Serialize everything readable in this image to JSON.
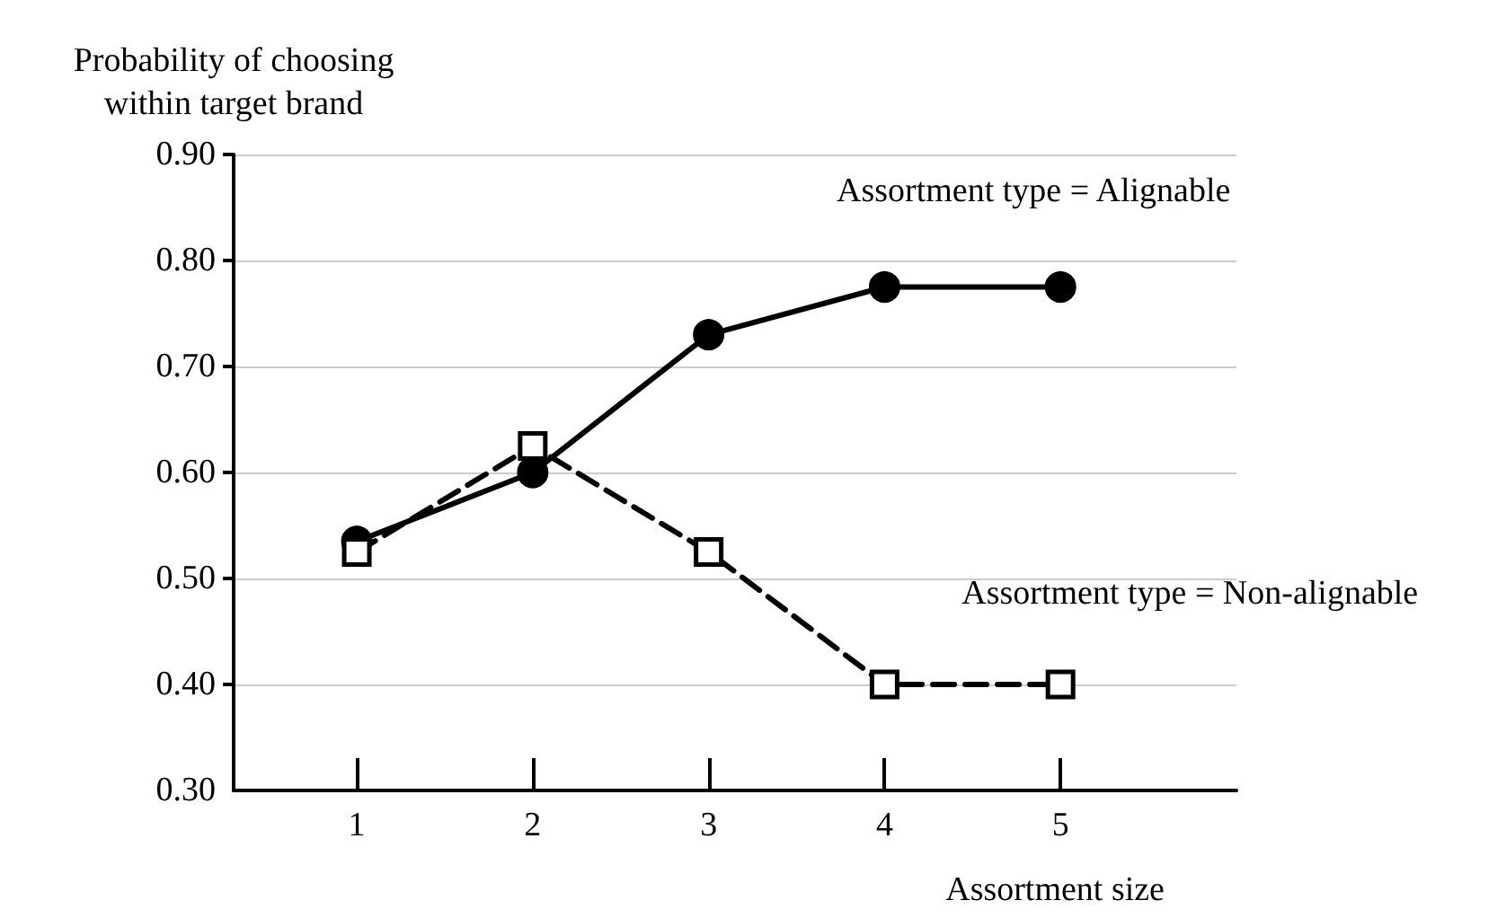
{
  "chart_data": {
    "type": "line",
    "ylabel": "Probability of choosing\nwithin target brand",
    "xlabel": "Assortment size",
    "x": [
      1,
      2,
      3,
      4,
      5
    ],
    "series": [
      {
        "name": "Assortment type = Alignable",
        "color": "#000000",
        "marker": "circle",
        "line_style": "solid",
        "values": [
          0.535,
          0.6,
          0.73,
          0.775,
          0.775
        ]
      },
      {
        "name": "Assortment type = Non-alignable",
        "color": "#000000",
        "marker": "square",
        "line_style": "dashed",
        "values": [
          0.525,
          0.625,
          0.525,
          0.4,
          0.4
        ]
      }
    ],
    "xlim": [
      0.3,
      6
    ],
    "xticks": [
      1,
      2,
      3,
      4,
      5
    ],
    "ylim": [
      0.3,
      0.9
    ],
    "yticks": [
      {
        "value": 0.3,
        "label": "0.30"
      },
      {
        "value": 0.4,
        "label": "0.40"
      },
      {
        "value": 0.5,
        "label": "0.50"
      },
      {
        "value": 0.6,
        "label": "0.60"
      },
      {
        "value": 0.7,
        "label": "0.70"
      },
      {
        "value": 0.8,
        "label": "0.80"
      },
      {
        "value": 0.9,
        "label": "0.90"
      }
    ],
    "grid": "y",
    "legend": false
  }
}
